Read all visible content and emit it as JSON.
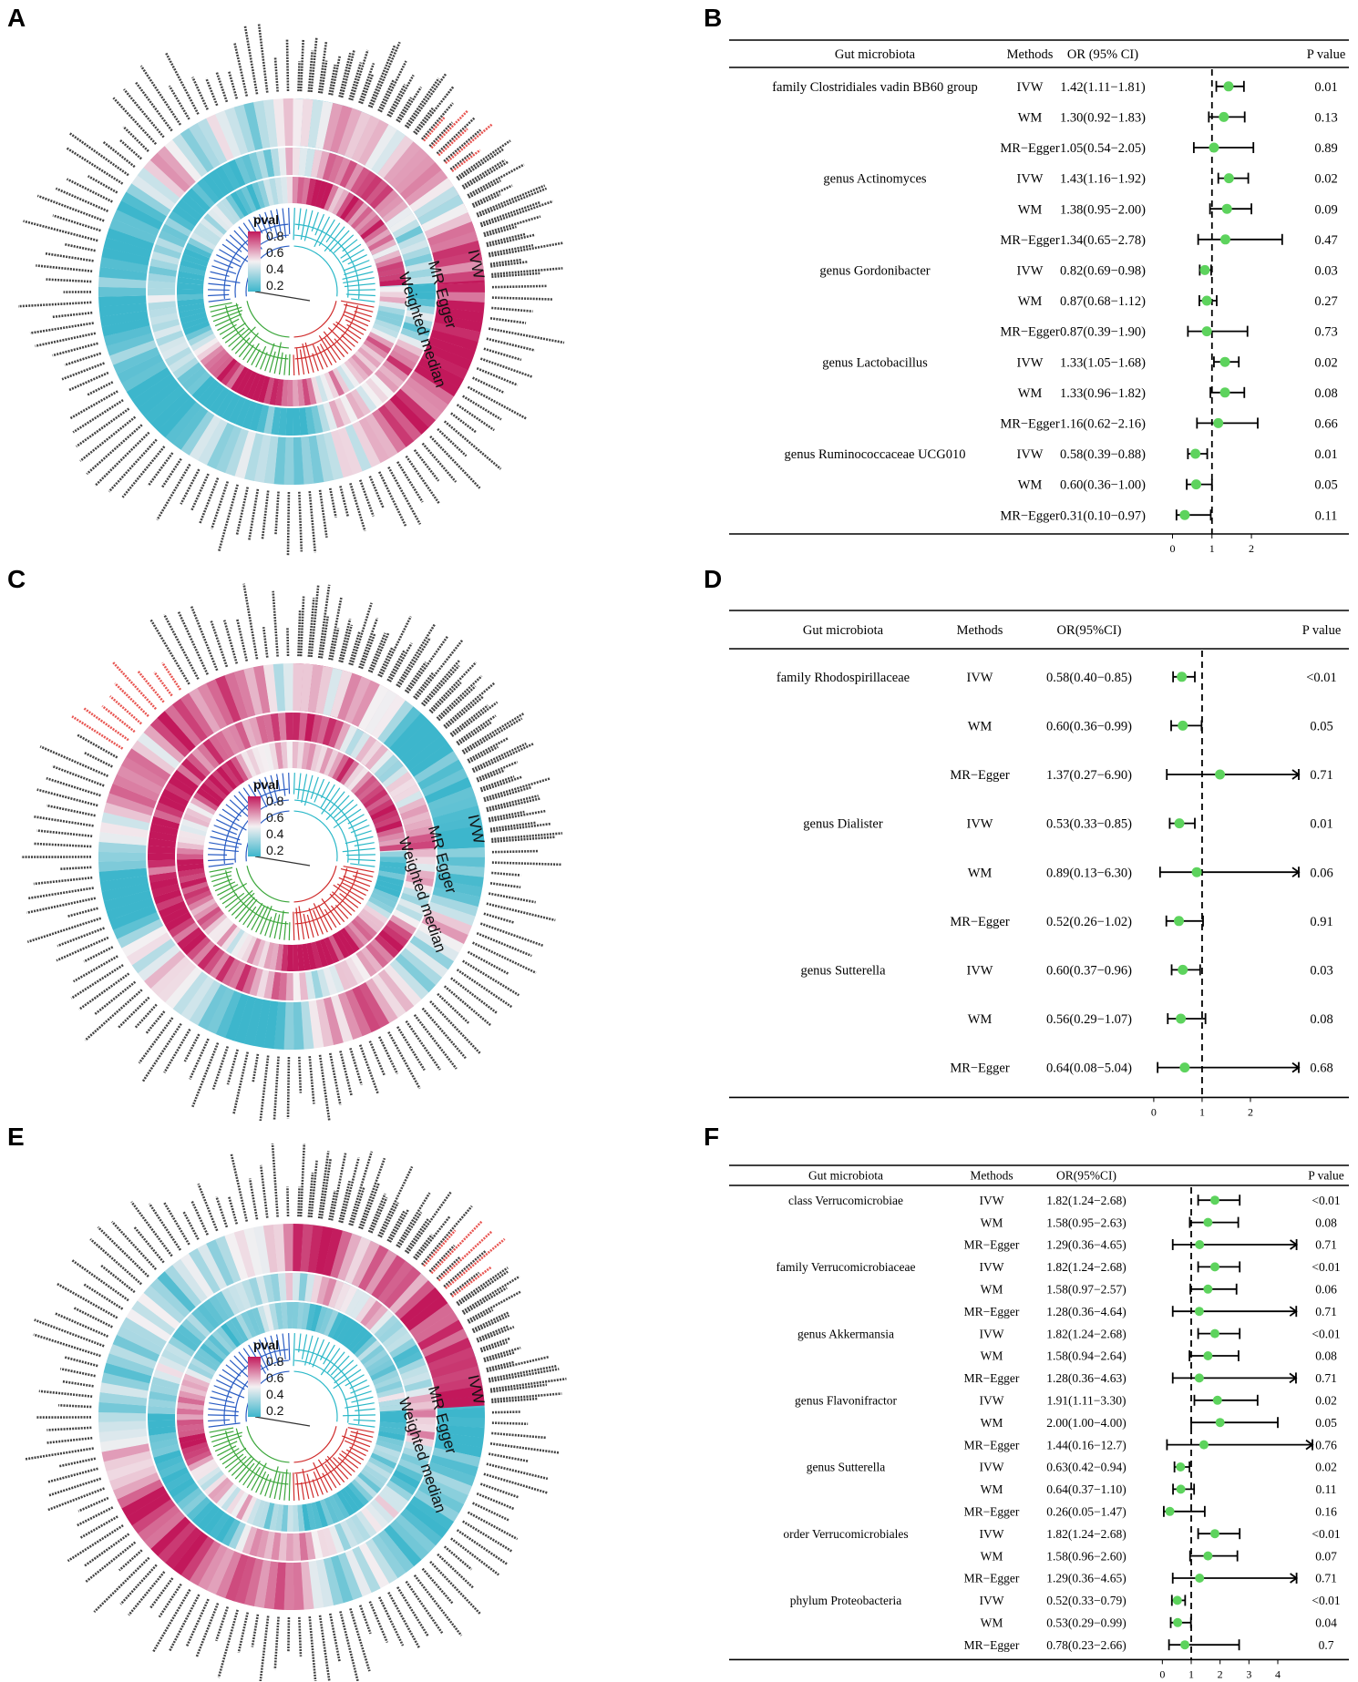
{
  "panels": {
    "A": "A",
    "B": "B",
    "C": "C",
    "D": "D",
    "E": "E",
    "F": "F"
  },
  "circular": {
    "ring_labels": [
      "IVW",
      "MR Egger",
      "Weighted median"
    ],
    "legend_title": "pval",
    "legend_ticks": [
      "0.8",
      "0.6",
      "0.4",
      "0.2"
    ],
    "colors": {
      "high": "#c2185b",
      "mid": "#f4f0f2",
      "low": "#3db6cc",
      "clade_cyan": "#2bb8c8",
      "clade_blue": "#2a5dc4",
      "clade_green": "#3aa63a",
      "clade_red": "#d02b2b",
      "highlight_text": "#e53935"
    }
  },
  "chart_data": [
    {
      "type": "table",
      "panel": "B",
      "headers": {
        "microbiota": "Gut microbiota",
        "methods": "Methods",
        "or": "OR (95% CI)",
        "p": "P value"
      },
      "xaxis": {
        "ticks": [
          "0",
          "1",
          "2"
        ],
        "min": -0.15,
        "max": 3.2,
        "ref": 1
      },
      "rows": [
        {
          "taxon": "family Clostridiales vadin BB60 group",
          "method": "IVW",
          "or_text": "1.42(1.11−1.81)",
          "or": 1.42,
          "lo": 1.11,
          "hi": 1.81,
          "p": "0.01",
          "clip": false
        },
        {
          "taxon": "",
          "method": "WM",
          "or_text": "1.30(0.92−1.83)",
          "or": 1.3,
          "lo": 0.92,
          "hi": 1.83,
          "p": "0.13",
          "clip": false
        },
        {
          "taxon": "",
          "method": "MR−Egger",
          "or_text": "1.05(0.54−2.05)",
          "or": 1.05,
          "lo": 0.54,
          "hi": 2.05,
          "p": "0.89",
          "clip": false
        },
        {
          "taxon": "genus Actinomyces",
          "method": "IVW",
          "or_text": "1.43(1.16−1.92)",
          "or": 1.43,
          "lo": 1.16,
          "hi": 1.92,
          "p": "0.02",
          "clip": false
        },
        {
          "taxon": "",
          "method": "WM",
          "or_text": "1.38(0.95−2.00)",
          "or": 1.38,
          "lo": 0.95,
          "hi": 2.0,
          "p": "0.09",
          "clip": false
        },
        {
          "taxon": "",
          "method": "MR−Egger",
          "or_text": "1.34(0.65−2.78)",
          "or": 1.34,
          "lo": 0.65,
          "hi": 2.78,
          "p": "0.47",
          "clip": false
        },
        {
          "taxon": "genus Gordonibacter",
          "method": "IVW",
          "or_text": "0.82(0.69−0.98)",
          "or": 0.82,
          "lo": 0.69,
          "hi": 0.98,
          "p": "0.03",
          "clip": false
        },
        {
          "taxon": "",
          "method": "WM",
          "or_text": "0.87(0.68−1.12)",
          "or": 0.87,
          "lo": 0.68,
          "hi": 1.12,
          "p": "0.27",
          "clip": false
        },
        {
          "taxon": "",
          "method": "MR−Egger",
          "or_text": "0.87(0.39−1.90)",
          "or": 0.87,
          "lo": 0.39,
          "hi": 1.9,
          "p": "0.73",
          "clip": false
        },
        {
          "taxon": "genus Lactobacillus",
          "method": "IVW",
          "or_text": "1.33(1.05−1.68)",
          "or": 1.33,
          "lo": 1.05,
          "hi": 1.68,
          "p": "0.02",
          "clip": false
        },
        {
          "taxon": "",
          "method": "WM",
          "or_text": "1.33(0.96−1.82)",
          "or": 1.33,
          "lo": 0.96,
          "hi": 1.82,
          "p": "0.08",
          "clip": false
        },
        {
          "taxon": "",
          "method": "MR−Egger",
          "or_text": "1.16(0.62−2.16)",
          "or": 1.16,
          "lo": 0.62,
          "hi": 2.16,
          "p": "0.66",
          "clip": false
        },
        {
          "taxon": "genus Ruminococcaceae UCG010",
          "method": "IVW",
          "or_text": "0.58(0.39−0.88)",
          "or": 0.58,
          "lo": 0.39,
          "hi": 0.88,
          "p": "0.01",
          "clip": false
        },
        {
          "taxon": "",
          "method": "WM",
          "or_text": "0.60(0.36−1.00)",
          "or": 0.6,
          "lo": 0.36,
          "hi": 1.0,
          "p": "0.05",
          "clip": false
        },
        {
          "taxon": "",
          "method": "MR−Egger",
          "or_text": "0.31(0.10−0.97)",
          "or": 0.31,
          "lo": 0.1,
          "hi": 0.97,
          "p": "0.11",
          "clip": false
        }
      ]
    },
    {
      "type": "table",
      "panel": "D",
      "headers": {
        "microbiota": "Gut microbiota",
        "methods": "Methods",
        "or": "OR(95%CI)",
        "p": "P value"
      },
      "xaxis": {
        "ticks": [
          "0",
          "1",
          "2"
        ],
        "min": -0.3,
        "max": 3.0,
        "ref": 1
      },
      "rows": [
        {
          "taxon": "family Rhodospirillaceae",
          "method": "IVW",
          "or_text": "0.58(0.40−0.85)",
          "or": 0.58,
          "lo": 0.4,
          "hi": 0.85,
          "p": "<0.01",
          "clip": false
        },
        {
          "taxon": "",
          "method": "WM",
          "or_text": "0.60(0.36−0.99)",
          "or": 0.6,
          "lo": 0.36,
          "hi": 0.99,
          "p": "0.05",
          "clip": false
        },
        {
          "taxon": "",
          "method": "MR−Egger",
          "or_text": "1.37(0.27−6.90)",
          "or": 1.37,
          "lo": 0.27,
          "hi": 6.9,
          "p": "0.71",
          "clip": true
        },
        {
          "taxon": "genus Dialister",
          "method": "IVW",
          "or_text": "0.53(0.33−0.85)",
          "or": 0.53,
          "lo": 0.33,
          "hi": 0.85,
          "p": "0.01",
          "clip": false
        },
        {
          "taxon": "",
          "method": "WM",
          "or_text": "0.89(0.13−6.30)",
          "or": 0.89,
          "lo": 0.13,
          "hi": 6.3,
          "p": "0.06",
          "clip": true
        },
        {
          "taxon": "",
          "method": "MR−Egger",
          "or_text": "0.52(0.26−1.02)",
          "or": 0.52,
          "lo": 0.26,
          "hi": 1.02,
          "p": "0.91",
          "clip": false
        },
        {
          "taxon": "genus Sutterella",
          "method": "IVW",
          "or_text": "0.60(0.37−0.96)",
          "or": 0.6,
          "lo": 0.37,
          "hi": 0.96,
          "p": "0.03",
          "clip": false
        },
        {
          "taxon": "",
          "method": "WM",
          "or_text": "0.56(0.29−1.07)",
          "or": 0.56,
          "lo": 0.29,
          "hi": 1.07,
          "p": "0.08",
          "clip": false
        },
        {
          "taxon": "",
          "method": "MR−Egger",
          "or_text": "0.64(0.08−5.04)",
          "or": 0.64,
          "lo": 0.08,
          "hi": 5.04,
          "p": "0.68",
          "clip": true
        }
      ]
    },
    {
      "type": "table",
      "panel": "F",
      "headers": {
        "microbiota": "Gut microbiota",
        "methods": "Methods",
        "or": "OR(95%CI)",
        "p": "P value"
      },
      "xaxis": {
        "ticks": [
          "0",
          "1",
          "2",
          "3",
          "4"
        ],
        "min": -0.8,
        "max": 5.2,
        "ref": 1
      },
      "rows": [
        {
          "taxon": "class Verrucomicrobiae",
          "method": "IVW",
          "or_text": "1.82(1.24−2.68)",
          "or": 1.82,
          "lo": 1.24,
          "hi": 2.68,
          "p": "<0.01",
          "clip": false
        },
        {
          "taxon": "",
          "method": "WM",
          "or_text": "1.58(0.95−2.63)",
          "or": 1.58,
          "lo": 0.95,
          "hi": 2.63,
          "p": "0.08",
          "clip": false
        },
        {
          "taxon": "",
          "method": "MR−Egger",
          "or_text": "1.29(0.36−4.65)",
          "or": 1.29,
          "lo": 0.36,
          "hi": 4.65,
          "p": "0.71",
          "clip": true
        },
        {
          "taxon": "family Verrucomicrobiaceae",
          "method": "IVW",
          "or_text": "1.82(1.24−2.68)",
          "or": 1.82,
          "lo": 1.24,
          "hi": 2.68,
          "p": "<0.01",
          "clip": false
        },
        {
          "taxon": "",
          "method": "WM",
          "or_text": "1.58(0.97−2.57)",
          "or": 1.58,
          "lo": 0.97,
          "hi": 2.57,
          "p": "0.06",
          "clip": false
        },
        {
          "taxon": "",
          "method": "MR−Egger",
          "or_text": "1.28(0.36−4.64)",
          "or": 1.28,
          "lo": 0.36,
          "hi": 4.64,
          "p": "0.71",
          "clip": true
        },
        {
          "taxon": "genus Akkermansia",
          "method": "IVW",
          "or_text": "1.82(1.24−2.68)",
          "or": 1.82,
          "lo": 1.24,
          "hi": 2.68,
          "p": "<0.01",
          "clip": false
        },
        {
          "taxon": "",
          "method": "WM",
          "or_text": "1.58(0.94−2.64)",
          "or": 1.58,
          "lo": 0.94,
          "hi": 2.64,
          "p": "0.08",
          "clip": false
        },
        {
          "taxon": "",
          "method": "MR−Egger",
          "or_text": "1.28(0.36−4.63)",
          "or": 1.28,
          "lo": 0.36,
          "hi": 4.63,
          "p": "0.71",
          "clip": true
        },
        {
          "taxon": "genus Flavonifractor",
          "method": "IVW",
          "or_text": "1.91(1.11−3.30)",
          "or": 1.91,
          "lo": 1.11,
          "hi": 3.3,
          "p": "0.02",
          "clip": false
        },
        {
          "taxon": "",
          "method": "WM",
          "or_text": "2.00(1.00−4.00)",
          "or": 2.0,
          "lo": 1.0,
          "hi": 4.0,
          "p": "0.05",
          "clip": false
        },
        {
          "taxon": "",
          "method": "MR−Egger",
          "or_text": "1.44(0.16−12.7)",
          "or": 1.44,
          "lo": 0.16,
          "hi": 12.7,
          "p": "0.76",
          "clip": true
        },
        {
          "taxon": "genus Sutterella",
          "method": "IVW",
          "or_text": "0.63(0.42−0.94)",
          "or": 0.63,
          "lo": 0.42,
          "hi": 0.94,
          "p": "0.02",
          "clip": false
        },
        {
          "taxon": "",
          "method": "WM",
          "or_text": "0.64(0.37−1.10)",
          "or": 0.64,
          "lo": 0.37,
          "hi": 1.1,
          "p": "0.11",
          "clip": false
        },
        {
          "taxon": "",
          "method": "MR−Egger",
          "or_text": "0.26(0.05−1.47)",
          "or": 0.26,
          "lo": 0.05,
          "hi": 1.47,
          "p": "0.16",
          "clip": false
        },
        {
          "taxon": "order Verrucomicrobiales",
          "method": "IVW",
          "or_text": "1.82(1.24−2.68)",
          "or": 1.82,
          "lo": 1.24,
          "hi": 2.68,
          "p": "<0.01",
          "clip": false
        },
        {
          "taxon": "",
          "method": "WM",
          "or_text": "1.58(0.96−2.60)",
          "or": 1.58,
          "lo": 0.96,
          "hi": 2.6,
          "p": "0.07",
          "clip": false
        },
        {
          "taxon": "",
          "method": "MR−Egger",
          "or_text": "1.29(0.36−4.65)",
          "or": 1.29,
          "lo": 0.36,
          "hi": 4.65,
          "p": "0.71",
          "clip": true
        },
        {
          "taxon": "phylum Proteobacteria",
          "method": "IVW",
          "or_text": "0.52(0.33−0.79)",
          "or": 0.52,
          "lo": 0.33,
          "hi": 0.79,
          "p": "<0.01",
          "clip": false
        },
        {
          "taxon": "",
          "method": "WM",
          "or_text": "0.53(0.29−0.99)",
          "or": 0.53,
          "lo": 0.29,
          "hi": 0.99,
          "p": "0.04",
          "clip": false
        },
        {
          "taxon": "",
          "method": "MR−Egger",
          "or_text": "0.78(0.23−2.66)",
          "or": 0.78,
          "lo": 0.23,
          "hi": 2.66,
          "p": "0.7",
          "clip": false
        }
      ]
    }
  ]
}
